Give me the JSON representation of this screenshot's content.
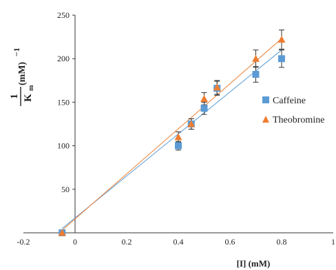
{
  "chart_data": {
    "type": "scatter",
    "xlabel": "[I] (mM)",
    "ylabel": {
      "numerator": "1",
      "denominator": "K",
      "subscript": "m",
      "unit": "(mM)",
      "exponent": "−1"
    },
    "xlim": [
      -0.2,
      1
    ],
    "ylim": [
      0,
      250
    ],
    "x_ticks": [
      "-0.2",
      "0",
      "0.2",
      "0.4",
      "0.6",
      "0.8",
      "1"
    ],
    "y_ticks": [
      "50",
      "100",
      "150",
      "200",
      "250"
    ],
    "grid": false,
    "legend_position": "right",
    "series": [
      {
        "name": "Caffeine",
        "marker": "square",
        "color": "#5b9bd5",
        "x": [
          -0.05,
          0.4,
          0.45,
          0.5,
          0.55,
          0.7,
          0.8
        ],
        "y": [
          0,
          100,
          125,
          143,
          166,
          182,
          200
        ],
        "yerr": [
          0,
          5,
          6,
          7,
          8,
          9,
          10
        ],
        "trendline": {
          "x": [
            -0.05,
            0.8
          ],
          "y": [
            5,
            210
          ]
        }
      },
      {
        "name": "Theobromine",
        "marker": "triangle",
        "color": "#ed7d31",
        "x": [
          -0.05,
          0.4,
          0.45,
          0.5,
          0.55,
          0.7,
          0.8
        ],
        "y": [
          0,
          110,
          125,
          154,
          167,
          200,
          222
        ],
        "yerr": [
          0,
          6,
          6,
          7,
          8,
          10,
          11
        ],
        "trendline": {
          "x": [
            -0.05,
            0.8
          ],
          "y": [
            3,
            223
          ]
        }
      }
    ]
  }
}
